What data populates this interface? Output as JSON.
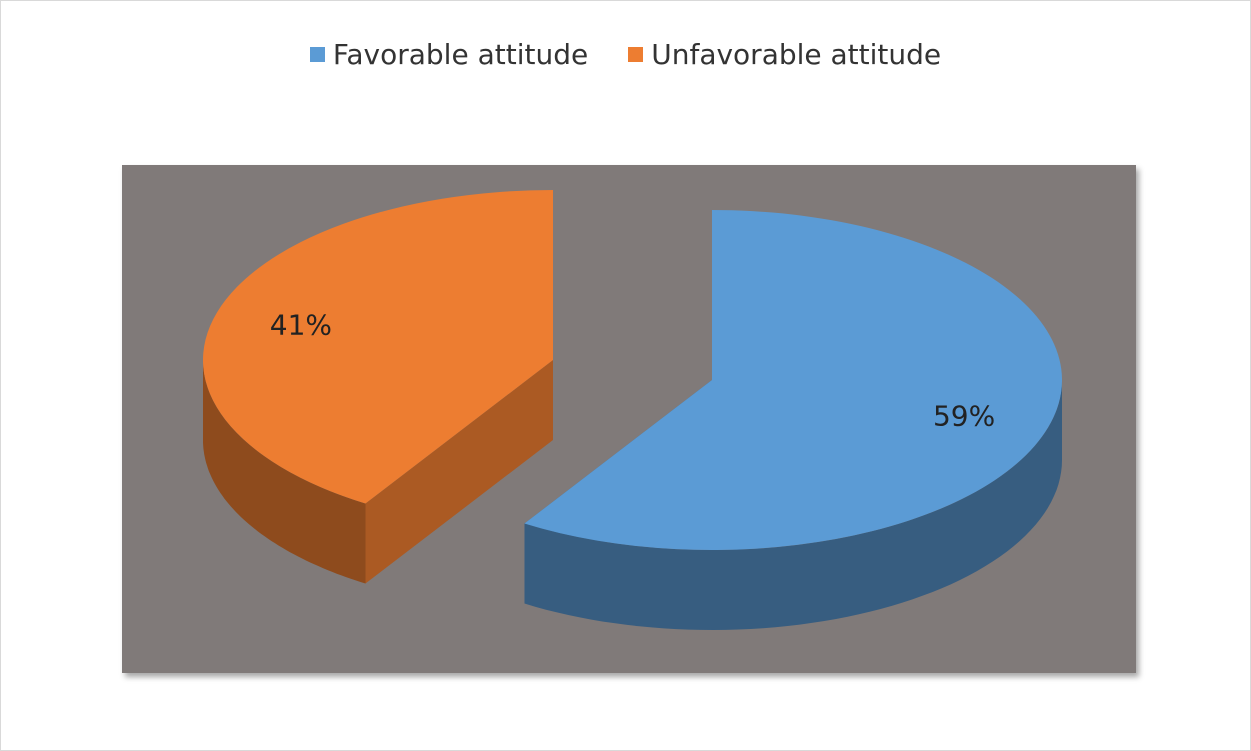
{
  "chart_data": {
    "type": "pie",
    "variant": "3d-exploded",
    "series": [
      {
        "name": "Favorable attitude",
        "value": 59,
        "label": "59%",
        "color": "#5b9bd5"
      },
      {
        "name": "Unfavorable attitude",
        "value": 41,
        "label": "41%",
        "color": "#ed7d31"
      }
    ],
    "legend_position": "top",
    "plot_background": "#807a79"
  }
}
